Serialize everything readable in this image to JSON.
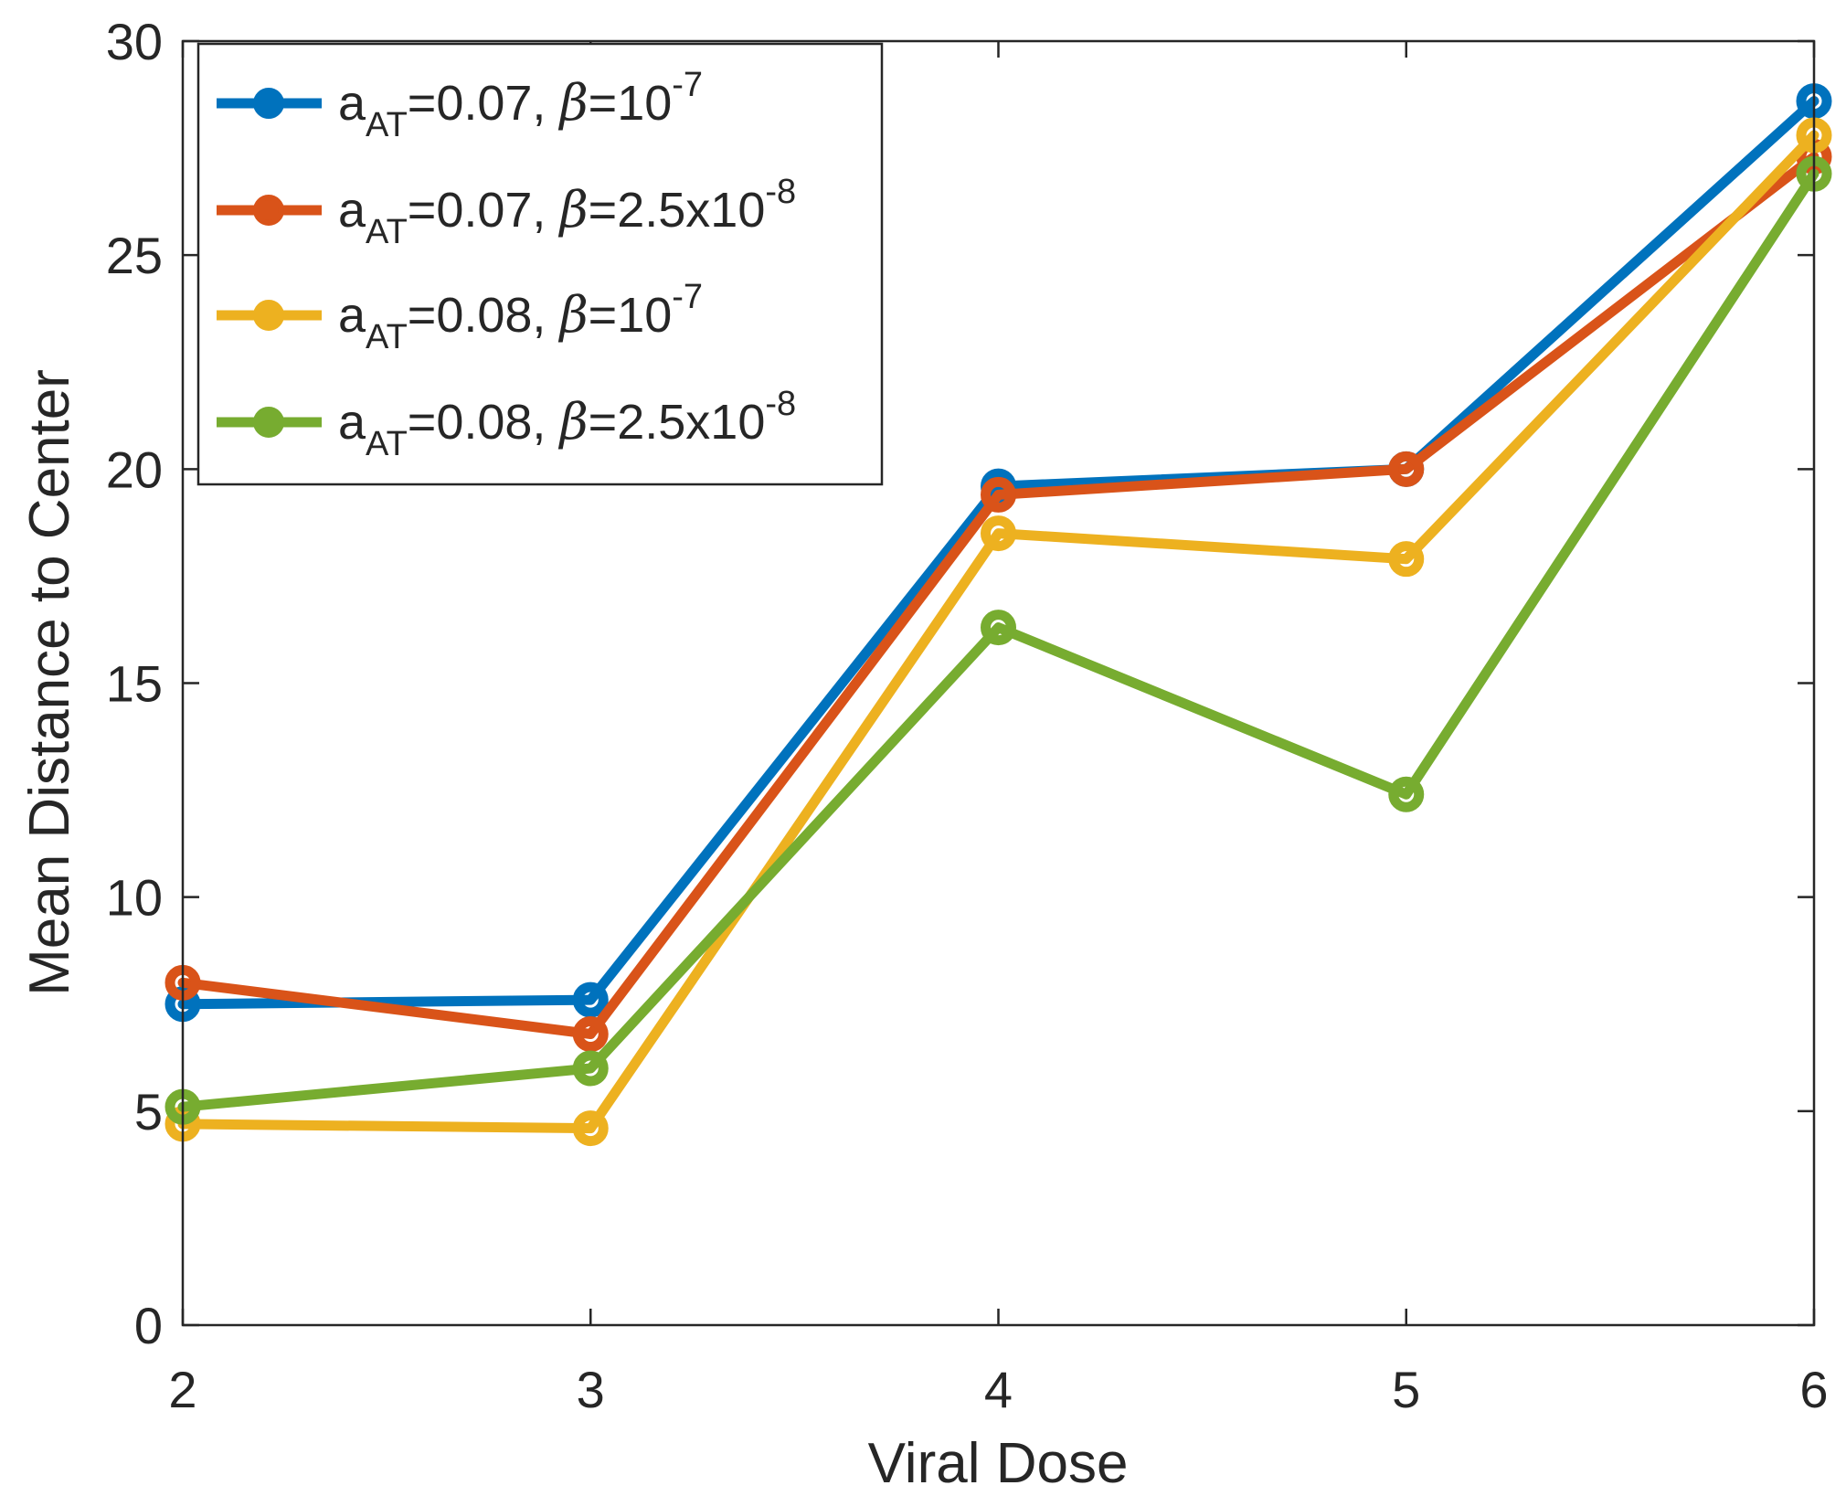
{
  "chart_data": {
    "type": "line",
    "xlabel": "Viral Dose",
    "ylabel": "Mean Distance to Center",
    "xlim": [
      2,
      6
    ],
    "ylim": [
      0,
      30
    ],
    "xticks": [
      2,
      3,
      4,
      5,
      6
    ],
    "yticks": [
      0,
      5,
      10,
      15,
      20,
      25,
      30
    ],
    "grid": false,
    "legend_position": "top-left",
    "x": [
      2,
      3,
      4,
      5,
      6
    ],
    "series": [
      {
        "label": {
          "a": "a",
          "sub": "AT",
          "mid": "=0.07, ",
          "beta": "β",
          "eq": "=",
          "coef": "",
          "base": "10",
          "exp": "-7"
        },
        "color": "#0072BD",
        "values": [
          7.5,
          7.6,
          19.6,
          20.0,
          28.6
        ]
      },
      {
        "label": {
          "a": "a",
          "sub": "AT",
          "mid": "=0.07, ",
          "beta": "β",
          "eq": "=",
          "coef": "2.5x",
          "base": "10",
          "exp": "-8"
        },
        "color": "#D95319",
        "values": [
          8.0,
          6.8,
          19.4,
          20.0,
          27.3
        ]
      },
      {
        "label": {
          "a": "a",
          "sub": "AT",
          "mid": "=0.08, ",
          "beta": "β",
          "eq": "=",
          "coef": "",
          "base": "10",
          "exp": "-7"
        },
        "color": "#EDB120",
        "values": [
          4.7,
          4.6,
          18.5,
          17.9,
          27.8
        ]
      },
      {
        "label": {
          "a": "a",
          "sub": "AT",
          "mid": "=0.08, ",
          "beta": "β",
          "eq": "=",
          "coef": "2.5x",
          "base": "10",
          "exp": "-8"
        },
        "color": "#77AC30",
        "values": [
          5.1,
          6.0,
          16.3,
          12.4,
          26.9
        ]
      }
    ]
  }
}
